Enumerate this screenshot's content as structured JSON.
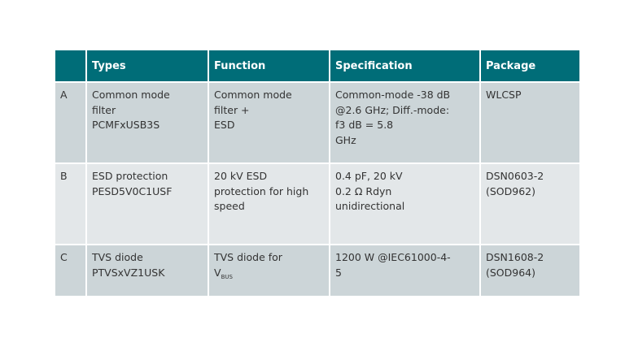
{
  "table": {
    "headers": [
      "",
      "Types",
      "Function",
      "Specification",
      "Package"
    ],
    "rows": [
      {
        "id": "A",
        "types": [
          "Common mode",
          "filter",
          "PCMFxUSB3S"
        ],
        "function": [
          "Common mode",
          "filter +",
          "ESD"
        ],
        "specification": [
          "Common-mode -38 dB",
          "@2.6 GHz; Diff.-mode:",
          "f3 dB = 5.8",
          "GHz"
        ],
        "package": [
          "WLCSP"
        ]
      },
      {
        "id": "B",
        "types": [
          "ESD protection",
          "PESD5V0C1USF"
        ],
        "function": [
          "20 kV ESD",
          "protection for high",
          "speed"
        ],
        "specification": [
          "0.4 pF, 20 kV",
          "0.2 Ω Rdyn",
          "unidirectional"
        ],
        "package": [
          "DSN0603-2",
          "(SOD962)"
        ]
      },
      {
        "id": "C",
        "types": [
          "TVS diode",
          "PTVSxVZ1USK"
        ],
        "function": [
          "TVS diode for"
        ],
        "function_symbol": {
          "main": "V",
          "sub": "BUS"
        },
        "specification": [
          "1200 W @IEC61000-4-",
          "5"
        ],
        "package": [
          "DSN1608-2",
          "(SOD964)"
        ]
      }
    ]
  },
  "colors": {
    "header_bg": "#006d78",
    "row_dark": "#ccd5d8",
    "row_light": "#e3e7e9"
  }
}
